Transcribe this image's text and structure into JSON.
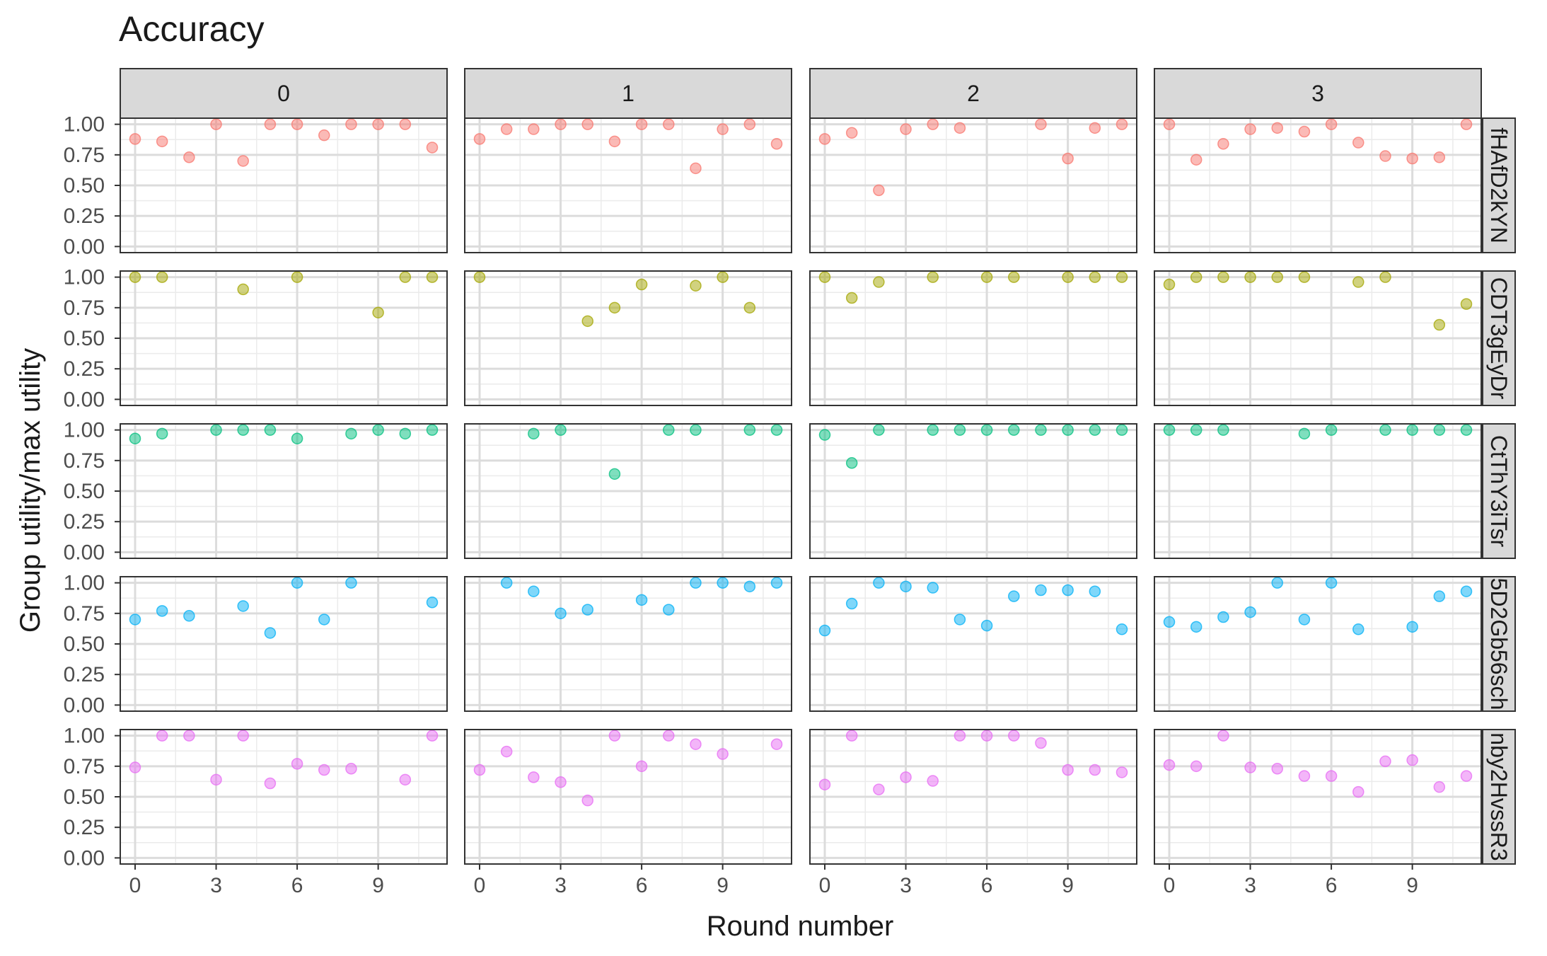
{
  "chart_data": {
    "type": "scatter",
    "title": "Accuracy",
    "xlabel": "Round number",
    "ylabel": "Group utility/max utility",
    "xlim": [
      -0.55,
      11.55
    ],
    "ylim": [
      0,
      1
    ],
    "x_ticks": [
      0,
      3,
      6,
      9
    ],
    "x_tick_labels": [
      "0",
      "3",
      "6",
      "9"
    ],
    "y_ticks": [
      0,
      0.25,
      0.5,
      0.75,
      1.0
    ],
    "y_tick_labels": [
      "0.00",
      "0.25",
      "0.50",
      "0.75",
      "1.00"
    ],
    "grid": true,
    "col_facets": [
      "0",
      "1",
      "2",
      "3"
    ],
    "row_facets": [
      {
        "label": "fHAfD2kYN",
        "color": "#F8766D"
      },
      {
        "label": "CDT3gEyDr",
        "color": "#A3A500"
      },
      {
        "label": "CtThY3iTsr",
        "color": "#00BF7D"
      },
      {
        "label": "5D2Gb56sch",
        "color": "#00B0F6"
      },
      {
        "label": "nby2HvssR3",
        "color": "#E76BF3"
      }
    ],
    "panels": [
      [
        [
          [
            0,
            0.88
          ],
          [
            1,
            0.86
          ],
          [
            2,
            0.73
          ],
          [
            3,
            1.0
          ],
          [
            4,
            0.7
          ],
          [
            5,
            1.0
          ],
          [
            6,
            1.0
          ],
          [
            7,
            0.91
          ],
          [
            8,
            1.0
          ],
          [
            9,
            1.0
          ],
          [
            10,
            1.0
          ],
          [
            11,
            0.81
          ]
        ],
        [
          [
            0,
            0.88
          ],
          [
            1,
            0.96
          ],
          [
            2,
            0.96
          ],
          [
            3,
            1.0
          ],
          [
            4,
            1.0
          ],
          [
            5,
            0.86
          ],
          [
            6,
            1.0
          ],
          [
            7,
            1.0
          ],
          [
            8,
            0.64
          ],
          [
            9,
            0.96
          ],
          [
            10,
            1.0
          ],
          [
            11,
            0.84
          ]
        ],
        [
          [
            0,
            0.88
          ],
          [
            1,
            0.93
          ],
          [
            2,
            0.46
          ],
          [
            3,
            0.96
          ],
          [
            4,
            1.0
          ],
          [
            5,
            0.97
          ],
          [
            8,
            1.0
          ],
          [
            9,
            0.72
          ],
          [
            10,
            0.97
          ],
          [
            11,
            1.0
          ]
        ],
        [
          [
            0,
            1.0
          ],
          [
            1,
            0.71
          ],
          [
            2,
            0.84
          ],
          [
            3,
            0.96
          ],
          [
            4,
            0.97
          ],
          [
            5,
            0.94
          ],
          [
            6,
            1.0
          ],
          [
            7,
            0.85
          ],
          [
            8,
            0.74
          ],
          [
            9,
            0.72
          ],
          [
            10,
            0.73
          ],
          [
            11,
            1.0
          ]
        ]
      ],
      [
        [
          [
            0,
            1.0
          ],
          [
            1,
            1.0
          ],
          [
            4,
            0.9
          ],
          [
            6,
            1.0
          ],
          [
            9,
            0.71
          ],
          [
            10,
            1.0
          ],
          [
            11,
            1.0
          ]
        ],
        [
          [
            0,
            1.0
          ],
          [
            4,
            0.64
          ],
          [
            5,
            0.75
          ],
          [
            6,
            0.94
          ],
          [
            8,
            0.93
          ],
          [
            9,
            1.0
          ],
          [
            10,
            0.75
          ]
        ],
        [
          [
            0,
            1.0
          ],
          [
            1,
            0.83
          ],
          [
            2,
            0.96
          ],
          [
            4,
            1.0
          ],
          [
            6,
            1.0
          ],
          [
            7,
            1.0
          ],
          [
            9,
            1.0
          ],
          [
            10,
            1.0
          ],
          [
            11,
            1.0
          ]
        ],
        [
          [
            0,
            0.94
          ],
          [
            1,
            1.0
          ],
          [
            2,
            1.0
          ],
          [
            3,
            1.0
          ],
          [
            4,
            1.0
          ],
          [
            5,
            1.0
          ],
          [
            7,
            0.96
          ],
          [
            8,
            1.0
          ],
          [
            10,
            0.61
          ],
          [
            11,
            0.78
          ]
        ]
      ],
      [
        [
          [
            0,
            0.93
          ],
          [
            1,
            0.97
          ],
          [
            3,
            1.0
          ],
          [
            4,
            1.0
          ],
          [
            5,
            1.0
          ],
          [
            6,
            0.93
          ],
          [
            8,
            0.97
          ],
          [
            9,
            1.0
          ],
          [
            10,
            0.97
          ],
          [
            11,
            1.0
          ]
        ],
        [
          [
            2,
            0.97
          ],
          [
            3,
            1.0
          ],
          [
            5,
            0.64
          ],
          [
            7,
            1.0
          ],
          [
            8,
            1.0
          ],
          [
            10,
            1.0
          ],
          [
            11,
            1.0
          ]
        ],
        [
          [
            0,
            0.96
          ],
          [
            1,
            0.73
          ],
          [
            2,
            1.0
          ],
          [
            4,
            1.0
          ],
          [
            5,
            1.0
          ],
          [
            6,
            1.0
          ],
          [
            7,
            1.0
          ],
          [
            8,
            1.0
          ],
          [
            9,
            1.0
          ],
          [
            10,
            1.0
          ],
          [
            11,
            1.0
          ]
        ],
        [
          [
            0,
            1.0
          ],
          [
            1,
            1.0
          ],
          [
            2,
            1.0
          ],
          [
            5,
            0.97
          ],
          [
            6,
            1.0
          ],
          [
            8,
            1.0
          ],
          [
            9,
            1.0
          ],
          [
            10,
            1.0
          ],
          [
            11,
            1.0
          ]
        ]
      ],
      [
        [
          [
            0,
            0.7
          ],
          [
            1,
            0.77
          ],
          [
            2,
            0.73
          ],
          [
            4,
            0.81
          ],
          [
            5,
            0.59
          ],
          [
            6,
            1.0
          ],
          [
            7,
            0.7
          ],
          [
            8,
            1.0
          ],
          [
            11,
            0.84
          ]
        ],
        [
          [
            1,
            1.0
          ],
          [
            2,
            0.93
          ],
          [
            3,
            0.75
          ],
          [
            4,
            0.78
          ],
          [
            6,
            0.86
          ],
          [
            7,
            0.78
          ],
          [
            8,
            1.0
          ],
          [
            9,
            1.0
          ],
          [
            10,
            0.97
          ],
          [
            11,
            1.0
          ]
        ],
        [
          [
            0,
            0.61
          ],
          [
            1,
            0.83
          ],
          [
            2,
            1.0
          ],
          [
            3,
            0.97
          ],
          [
            4,
            0.96
          ],
          [
            5,
            0.7
          ],
          [
            6,
            0.65
          ],
          [
            7,
            0.89
          ],
          [
            8,
            0.94
          ],
          [
            9,
            0.94
          ],
          [
            10,
            0.93
          ],
          [
            11,
            0.62
          ]
        ],
        [
          [
            0,
            0.68
          ],
          [
            1,
            0.64
          ],
          [
            2,
            0.72
          ],
          [
            3,
            0.76
          ],
          [
            4,
            1.0
          ],
          [
            5,
            0.7
          ],
          [
            6,
            1.0
          ],
          [
            7,
            0.62
          ],
          [
            9,
            0.64
          ],
          [
            10,
            0.89
          ],
          [
            11,
            0.93
          ]
        ]
      ],
      [
        [
          [
            0,
            0.74
          ],
          [
            1,
            1.0
          ],
          [
            2,
            1.0
          ],
          [
            3,
            0.64
          ],
          [
            4,
            1.0
          ],
          [
            5,
            0.61
          ],
          [
            6,
            0.77
          ],
          [
            7,
            0.72
          ],
          [
            8,
            0.73
          ],
          [
            10,
            0.64
          ],
          [
            11,
            1.0
          ]
        ],
        [
          [
            0,
            0.72
          ],
          [
            1,
            0.87
          ],
          [
            2,
            0.66
          ],
          [
            3,
            0.62
          ],
          [
            4,
            0.47
          ],
          [
            5,
            1.0
          ],
          [
            6,
            0.75
          ],
          [
            7,
            1.0
          ],
          [
            8,
            0.93
          ],
          [
            9,
            0.85
          ],
          [
            11,
            0.93
          ]
        ],
        [
          [
            0,
            0.6
          ],
          [
            1,
            1.0
          ],
          [
            2,
            0.56
          ],
          [
            3,
            0.66
          ],
          [
            4,
            0.63
          ],
          [
            5,
            1.0
          ],
          [
            6,
            1.0
          ],
          [
            7,
            1.0
          ],
          [
            8,
            0.94
          ],
          [
            9,
            0.72
          ],
          [
            10,
            0.72
          ],
          [
            11,
            0.7
          ]
        ],
        [
          [
            0,
            0.76
          ],
          [
            1,
            0.75
          ],
          [
            2,
            1.0
          ],
          [
            3,
            0.74
          ],
          [
            4,
            0.73
          ],
          [
            5,
            0.67
          ],
          [
            6,
            0.67
          ],
          [
            7,
            0.54
          ],
          [
            8,
            0.79
          ],
          [
            9,
            0.8
          ],
          [
            10,
            0.58
          ],
          [
            11,
            0.67
          ]
        ]
      ]
    ]
  }
}
